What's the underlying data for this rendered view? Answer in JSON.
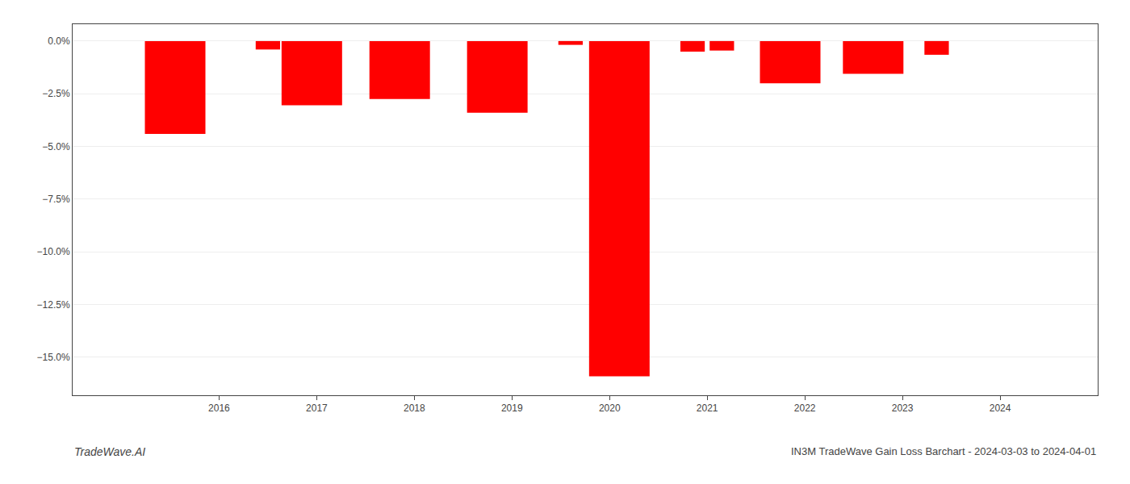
{
  "chart_data": {
    "type": "bar",
    "title": "IN3M TradeWave Gain Loss Barchart - 2024-03-03 to 2024-04-01",
    "annotations": [
      "TradeWave.AI"
    ],
    "x": [
      2015.55,
      2016.5,
      2016.95,
      2017.85,
      2018.85,
      2019.6,
      2020.1,
      2020.85,
      2021.15,
      2021.85,
      2022.7,
      2023.35
    ],
    "values": [
      -4.4,
      -0.4,
      -3.05,
      -2.75,
      -3.4,
      -0.18,
      -15.9,
      -0.5,
      -0.45,
      -2.0,
      -1.55,
      -0.65
    ],
    "widths": [
      0.62,
      0.25,
      0.62,
      0.62,
      0.62,
      0.25,
      0.62,
      0.25,
      0.25,
      0.62,
      0.62,
      0.25
    ],
    "color": "#ff0000",
    "xlim": [
      2014.5,
      2025.0
    ],
    "xticks": [
      2016,
      2017,
      2018,
      2019,
      2020,
      2021,
      2022,
      2023,
      2024
    ],
    "ylim": [
      -16.8,
      0.8
    ],
    "yticks": [
      {
        "value": 0.0,
        "label": "0.0%"
      },
      {
        "value": -2.5,
        "label": "−2.5%"
      },
      {
        "value": -5.0,
        "label": "−5.0%"
      },
      {
        "value": -7.5,
        "label": "−7.5%"
      },
      {
        "value": -10.0,
        "label": "−10.0%"
      },
      {
        "value": -12.5,
        "label": "−12.5%"
      },
      {
        "value": -15.0,
        "label": "−15.0%"
      }
    ],
    "grid": true
  }
}
